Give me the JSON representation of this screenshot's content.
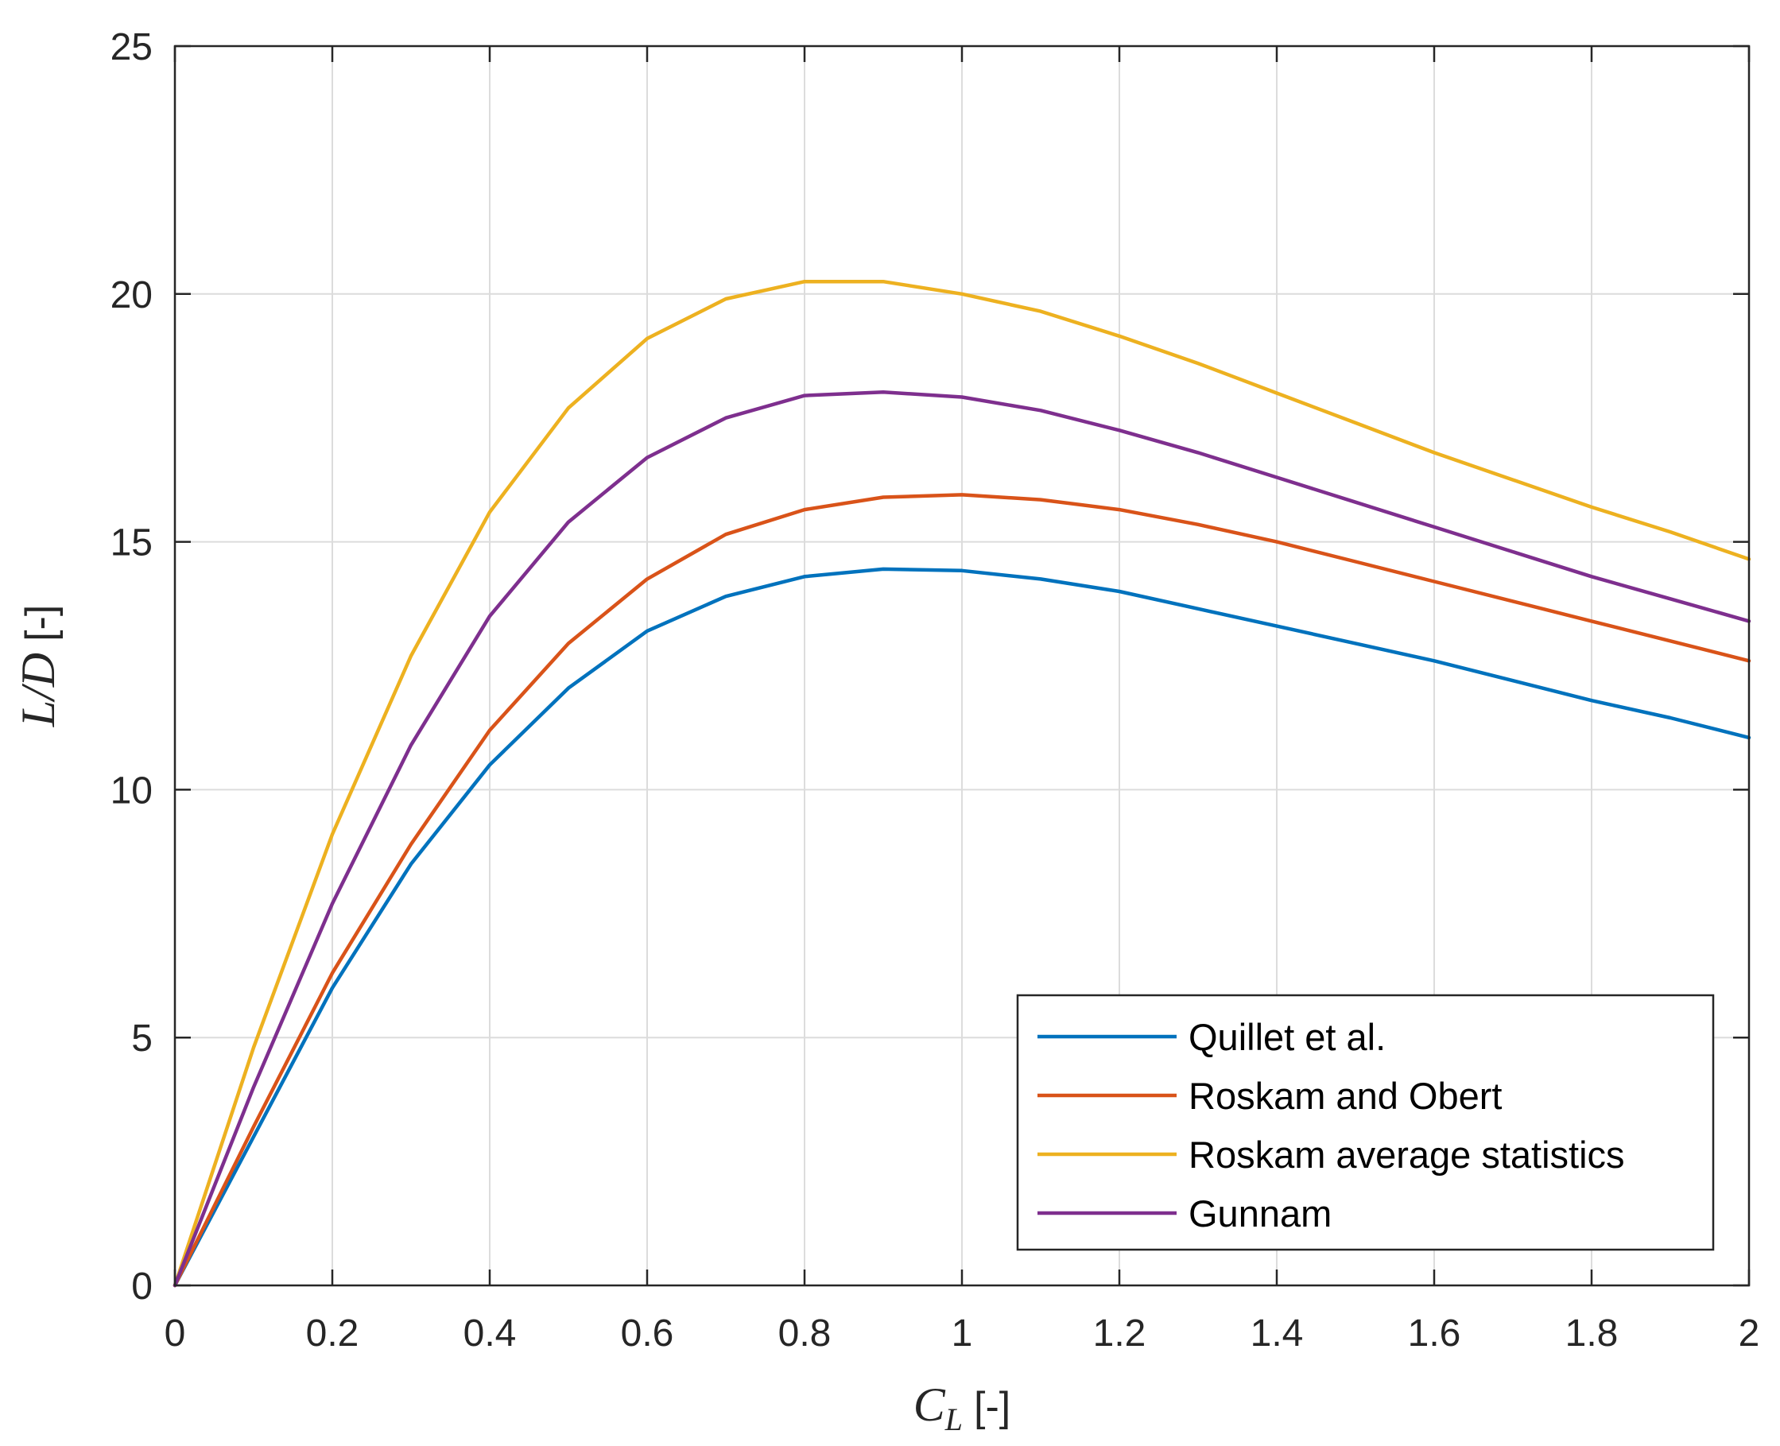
{
  "chart_data": {
    "type": "line",
    "xlabel": {
      "var": "C",
      "sub": "L",
      "unit": "[-]"
    },
    "ylabel": {
      "var": "L/D",
      "unit": "[-]"
    },
    "xlim": [
      0,
      2
    ],
    "ylim": [
      0,
      25
    ],
    "xticks": [
      0,
      0.2,
      0.4,
      0.6,
      0.8,
      1,
      1.2,
      1.4,
      1.6,
      1.8,
      2
    ],
    "yticks": [
      0,
      5,
      10,
      15,
      20,
      25
    ],
    "xtick_labels": [
      "0",
      "0.2",
      "0.4",
      "0.6",
      "0.8",
      "1",
      "1.2",
      "1.4",
      "1.6",
      "1.8",
      "2"
    ],
    "ytick_labels": [
      "0",
      "5",
      "10",
      "15",
      "20",
      "25"
    ],
    "grid": true,
    "legend_position": "bottom-right",
    "x": [
      0,
      0.1,
      0.2,
      0.3,
      0.4,
      0.5,
      0.6,
      0.7,
      0.8,
      0.9,
      1.0,
      1.1,
      1.2,
      1.3,
      1.4,
      1.5,
      1.6,
      1.7,
      1.8,
      1.9,
      2.0
    ],
    "series": [
      {
        "name": "Quillet et al.",
        "color": "#0072BD",
        "values": [
          0,
          3.0,
          6.0,
          8.5,
          10.5,
          12.05,
          13.2,
          13.9,
          14.3,
          14.45,
          14.42,
          14.25,
          14.0,
          13.65,
          13.3,
          12.95,
          12.6,
          12.2,
          11.8,
          11.45,
          11.05
        ]
      },
      {
        "name": "Roskam and Obert",
        "color": "#D95319",
        "values": [
          0,
          3.2,
          6.3,
          8.9,
          11.2,
          12.95,
          14.25,
          15.15,
          15.65,
          15.9,
          15.95,
          15.85,
          15.65,
          15.35,
          15.0,
          14.6,
          14.2,
          13.8,
          13.4,
          13.0,
          12.6
        ]
      },
      {
        "name": "Roskam average statistics",
        "color": "#EDB120",
        "values": [
          0,
          4.8,
          9.1,
          12.7,
          15.6,
          17.7,
          19.1,
          19.9,
          20.25,
          20.25,
          20.0,
          19.65,
          19.15,
          18.6,
          18.0,
          17.4,
          16.8,
          16.25,
          15.7,
          15.2,
          14.65
        ]
      },
      {
        "name": "Gunnam",
        "color": "#7E2F8E",
        "values": [
          0,
          4.0,
          7.7,
          10.9,
          13.5,
          15.4,
          16.7,
          17.5,
          17.95,
          18.02,
          17.92,
          17.65,
          17.25,
          16.8,
          16.3,
          15.8,
          15.3,
          14.8,
          14.3,
          13.85,
          13.4
        ]
      }
    ]
  }
}
